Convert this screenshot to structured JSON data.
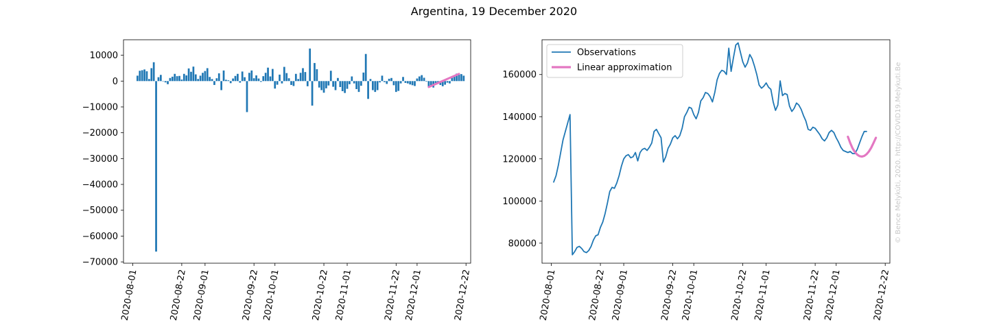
{
  "title": "Argentina, 19 December 2020",
  "watermark": "© Bence Melykúti, 2020. http://COVID19.Melykuti.Be",
  "colors": {
    "observations": "#1f77b4",
    "approximation": "#e377c2",
    "axis": "#000000"
  },
  "chart_data": [
    {
      "type": "bar",
      "subtitle": "",
      "xlabel": "",
      "ylabel": "",
      "x_ticks": [
        "2020-08-01",
        "2020-08-22",
        "2020-09-01",
        "2020-09-22",
        "2020-10-01",
        "2020-10-22",
        "2020-11-01",
        "2020-11-22",
        "2020-12-01",
        "2020-12-22"
      ],
      "y_ticks": [
        10000,
        0,
        -10000,
        -20000,
        -30000,
        -40000,
        -50000,
        -60000,
        -70000
      ],
      "y_tick_labels": [
        "10000",
        "0",
        "−10000",
        "−20000",
        "−30000",
        "−40000",
        "−50000",
        "−60000",
        "−70000"
      ],
      "ylim": [
        -70500,
        16000
      ],
      "xlim": [
        "2020-07-28",
        "2020-12-24"
      ],
      "start_date": "2020-08-03",
      "values": [
        2100,
        4000,
        4200,
        4500,
        3800,
        800,
        5000,
        7300,
        -66000,
        1500,
        2400,
        0,
        -500,
        -1200,
        1200,
        1700,
        2800,
        1900,
        2000,
        600,
        2800,
        2200,
        4900,
        3600,
        5600,
        2600,
        800,
        2100,
        3200,
        3900,
        5000,
        1600,
        800,
        -1500,
        1100,
        3000,
        -3500,
        4100,
        500,
        300,
        -800,
        1000,
        2000,
        2800,
        -600,
        3700,
        1500,
        -12000,
        3200,
        4100,
        1100,
        2200,
        1000,
        -300,
        1900,
        3200,
        5200,
        1800,
        4700,
        -2900,
        -1400,
        2500,
        -900,
        5500,
        3100,
        1100,
        -1500,
        -1900,
        2800,
        800,
        3200,
        5000,
        3500,
        -2000,
        12600,
        -9500,
        7000,
        4600,
        -2500,
        -3500,
        -4500,
        -2800,
        -1700,
        4000,
        -2200,
        -3500,
        1200,
        -2300,
        -3900,
        -4600,
        -3000,
        -1200,
        1800,
        -900,
        -3100,
        -4200,
        -1800,
        3300,
        10500,
        -6900,
        800,
        -3500,
        -4200,
        -3500,
        -500,
        2100,
        -400,
        -1100,
        900,
        1200,
        -1600,
        -4200,
        -3800,
        -900,
        1600,
        -700,
        -900,
        -1300,
        -1600,
        -1900,
        1000,
        1800,
        2300,
        1300,
        -200,
        -2100,
        -1800,
        -2500,
        -800,
        -600,
        -1500,
        -2000,
        -1400,
        -600,
        -900,
        1300,
        2200,
        2900,
        2800,
        2700,
        2100
      ],
      "series": [
        {
          "kind": "approximation",
          "start_date": "2020-12-06",
          "end_date": "2020-12-19",
          "y_start": -2300,
          "y_end": 2800
        }
      ]
    },
    {
      "type": "line",
      "subtitle": "",
      "xlabel": "",
      "ylabel": "",
      "x_ticks": [
        "2020-08-01",
        "2020-08-22",
        "2020-09-01",
        "2020-09-22",
        "2020-10-01",
        "2020-10-22",
        "2020-11-01",
        "2020-11-22",
        "2020-12-01",
        "2020-12-22"
      ],
      "y_ticks": [
        160000,
        140000,
        120000,
        100000,
        80000
      ],
      "y_tick_labels": [
        "160000",
        "140000",
        "120000",
        "100000",
        "80000"
      ],
      "ylim": [
        70500,
        176500
      ],
      "xlim": [
        "2020-07-28",
        "2020-12-24"
      ],
      "legend_position": "top-left",
      "series": [
        {
          "name": "Observations",
          "start_date": "2020-08-02",
          "values": [
            109000,
            112000,
            117000,
            123000,
            129000,
            133000,
            137000,
            141000,
            74500,
            76000,
            78000,
            78500,
            77500,
            76000,
            75500,
            76500,
            78500,
            81500,
            83500,
            84000,
            87500,
            90000,
            94000,
            99000,
            104500,
            106500,
            106000,
            108500,
            112000,
            116500,
            120000,
            121500,
            122000,
            120500,
            121000,
            123000,
            119000,
            123000,
            124500,
            125000,
            124000,
            125500,
            127500,
            133000,
            134000,
            132000,
            130000,
            118500,
            121000,
            125000,
            127000,
            130000,
            131000,
            129500,
            131000,
            134500,
            140000,
            142000,
            144500,
            144000,
            141000,
            139000,
            142000,
            147500,
            149000,
            151500,
            151000,
            149500,
            147000,
            151500,
            157500,
            160500,
            162000,
            161500,
            160000,
            172500,
            161500,
            168000,
            174000,
            175000,
            170500,
            166000,
            163500,
            165500,
            169500,
            167500,
            164000,
            160000,
            155000,
            153500,
            154500,
            156000,
            154000,
            153000,
            147000,
            143000,
            145500,
            157000,
            150000,
            151000,
            150500,
            145000,
            142500,
            144000,
            146500,
            145500,
            143500,
            140500,
            138000,
            134000,
            133500,
            135000,
            134500,
            133000,
            131500,
            129500,
            128500,
            130000,
            132500,
            133500,
            132500,
            130000,
            128000,
            125500,
            124000,
            123500,
            123000,
            123500,
            122500,
            122500,
            124500,
            127500,
            130500,
            133000,
            133000
          ],
          "line_color": "#1f77b4"
        },
        {
          "name": "Linear approximation",
          "start_date": "2020-12-06",
          "values": [
            130500,
            127500,
            125000,
            123200,
            122000,
            121300,
            121100,
            121400,
            122200,
            123500,
            125300,
            127600,
            130000
          ],
          "line_color": "#e377c2"
        }
      ]
    }
  ]
}
